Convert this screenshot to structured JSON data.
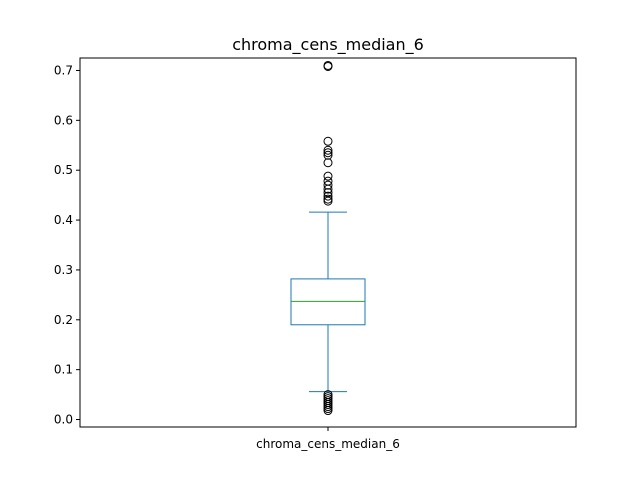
{
  "chart_data": {
    "type": "box",
    "title": "chroma_cens_median_6",
    "categories": [
      "chroma_cens_median_6"
    ],
    "ylim": [
      -0.015,
      0.725
    ],
    "yticks": [
      0.0,
      0.1,
      0.2,
      0.3,
      0.4,
      0.5,
      0.6,
      0.7
    ],
    "ytick_labels": [
      "0.0",
      "0.1",
      "0.2",
      "0.3",
      "0.4",
      "0.5",
      "0.6",
      "0.7"
    ],
    "grid": false,
    "box": {
      "whisker_low": 0.056,
      "q1": 0.19,
      "median": 0.237,
      "q3": 0.282,
      "whisker_high": 0.416
    },
    "outliers": [
      0.018,
      0.022,
      0.026,
      0.03,
      0.034,
      0.038,
      0.042,
      0.046,
      0.05,
      0.438,
      0.442,
      0.448,
      0.455,
      0.462,
      0.47,
      0.478,
      0.488,
      0.515,
      0.53,
      0.535,
      0.54,
      0.558,
      0.708,
      0.71
    ],
    "colors": {
      "box": "#1f77b4",
      "median": "#2ca02c",
      "outlier": "#000000"
    }
  }
}
